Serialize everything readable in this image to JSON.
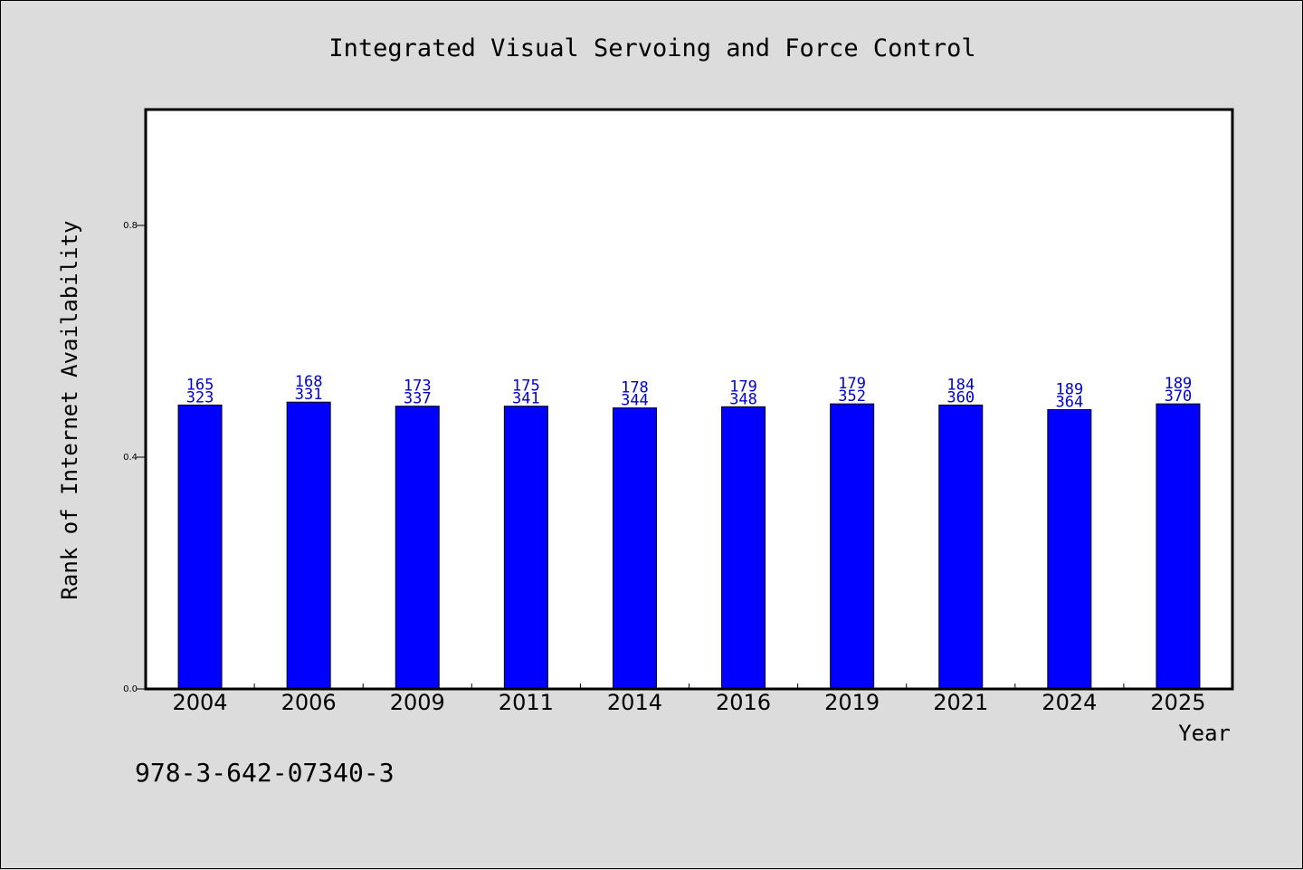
{
  "chart_data": {
    "type": "bar",
    "title": "Integrated Visual Servoing and Force Control",
    "xlabel": "Year",
    "ylabel": "Rank of Internet Availability",
    "categories": [
      "2004",
      "2006",
      "2009",
      "2011",
      "2014",
      "2016",
      "2019",
      "2021",
      "2024",
      "2025"
    ],
    "values": [
      0.49,
      0.495,
      0.488,
      0.488,
      0.485,
      0.487,
      0.492,
      0.49,
      0.482,
      0.492
    ],
    "label_top": [
      "165",
      "168",
      "173",
      "175",
      "178",
      "179",
      "179",
      "184",
      "189",
      "189"
    ],
    "label_bottom": [
      "323",
      "331",
      "337",
      "341",
      "344",
      "348",
      "352",
      "360",
      "364",
      "370"
    ],
    "yticks": [
      "0.0",
      "0.4",
      "0.8"
    ],
    "ylim": [
      0,
      1
    ],
    "grid": false,
    "legend": "none",
    "colors": {
      "bar": "#0000ff",
      "labels": "#0000cc",
      "background": "#dcdcdc",
      "plot": "#ffffff"
    }
  },
  "footer": {
    "code": "978-3-642-07340-3"
  }
}
